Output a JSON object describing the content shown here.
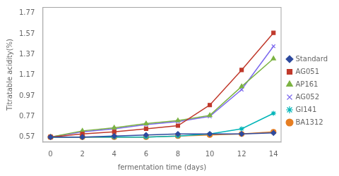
{
  "chart_data": {
    "type": "line",
    "x": [
      0,
      2,
      4,
      6,
      8,
      10,
      12,
      14
    ],
    "series": [
      {
        "name": "Standard",
        "color": "#2E4A9E",
        "marker": "diamond",
        "line_style": "solid",
        "values": [
          0.57,
          0.57,
          0.58,
          0.59,
          0.6,
          0.6,
          0.6,
          0.61
        ]
      },
      {
        "name": "AG051",
        "color": "#C0392B",
        "marker": "square",
        "line_style": "solid",
        "values": [
          0.57,
          0.6,
          0.62,
          0.65,
          0.68,
          0.88,
          1.22,
          1.58
        ]
      },
      {
        "name": "AP161",
        "color": "#7CB342",
        "marker": "triangle",
        "line_style": "solid",
        "values": [
          0.57,
          0.63,
          0.66,
          0.7,
          0.73,
          0.78,
          1.06,
          1.33
        ]
      },
      {
        "name": "AG052",
        "color": "#7B68EE",
        "marker": "x",
        "line_style": "solid",
        "values": [
          0.57,
          0.62,
          0.65,
          0.69,
          0.72,
          0.77,
          1.03,
          1.45
        ]
      },
      {
        "name": "GI141",
        "color": "#00B5B8",
        "marker": "star",
        "line_style": "solid",
        "values": [
          0.57,
          0.57,
          0.57,
          0.57,
          0.58,
          0.6,
          0.65,
          0.8
        ]
      },
      {
        "name": "BA1312",
        "color": "#E67E22",
        "marker": "circle",
        "line_style": "solid",
        "values": [
          0.57,
          0.57,
          0.57,
          0.57,
          0.58,
          0.59,
          0.6,
          0.62
        ]
      }
    ],
    "xlabel": "fermentation time (days)",
    "ylabel": "Titratable acidity(%)",
    "xlim": [
      -0.5,
      14.5
    ],
    "ylim": [
      0.52,
      1.83
    ],
    "xticks": [
      0,
      2,
      4,
      6,
      8,
      10,
      12,
      14
    ],
    "yticks": [
      0.57,
      0.77,
      0.97,
      1.17,
      1.37,
      1.57,
      1.77
    ],
    "grid": false,
    "legend": "right"
  }
}
